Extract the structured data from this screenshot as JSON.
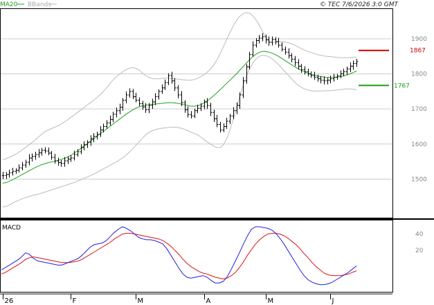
{
  "header": {
    "legend_ma": "MA20",
    "legend_bb": "BBands",
    "copyright": "© TEC 7/6/2026 3:0 GMT"
  },
  "colors": {
    "price": "#000000",
    "ma": "#1fa01f",
    "bbands": "#bbbbbb",
    "macd": "#2020dd",
    "signal": "#dd1111",
    "resistance": "#cc0000",
    "support": "#1aa01a",
    "grid": "#cccccc",
    "border": "#000000",
    "axis_text": "#888888"
  },
  "chart_data": [
    {
      "type": "ohlc",
      "title": "",
      "y_ticks": [
        1500,
        1600,
        1700,
        1800,
        1900
      ],
      "ylim": [
        1390,
        1985
      ],
      "months": [
        "26",
        "F",
        "M",
        "A",
        "M",
        "J"
      ],
      "month_start_index": [
        0,
        21,
        41,
        62,
        81,
        101
      ],
      "levels": [
        {
          "name": "resistance",
          "label": "1867",
          "value": 1867,
          "color": "#cc0000"
        },
        {
          "name": "support",
          "label": "1767",
          "value": 1767,
          "color": "#1aa01a"
        }
      ],
      "series": [
        {
          "name": "Price",
          "style": "bars",
          "values": [
            1510,
            1513,
            1518,
            1522,
            1525,
            1532,
            1540,
            1548,
            1560,
            1565,
            1570,
            1575,
            1582,
            1580,
            1574,
            1562,
            1552,
            1547,
            1545,
            1552,
            1557,
            1560,
            1570,
            1578,
            1590,
            1598,
            1605,
            1615,
            1622,
            1628,
            1640,
            1650,
            1660,
            1670,
            1685,
            1695,
            1705,
            1725,
            1740,
            1750,
            1735,
            1725,
            1715,
            1706,
            1698,
            1710,
            1720,
            1735,
            1750,
            1760,
            1775,
            1795,
            1780,
            1760,
            1740,
            1718,
            1698,
            1684,
            1680,
            1695,
            1702,
            1708,
            1720,
            1710,
            1690,
            1672,
            1656,
            1640,
            1650,
            1665,
            1680,
            1695,
            1710,
            1740,
            1780,
            1820,
            1855,
            1882,
            1895,
            1902,
            1906,
            1897,
            1890,
            1898,
            1892,
            1882,
            1870,
            1862,
            1852,
            1842,
            1832,
            1822,
            1812,
            1806,
            1800,
            1795,
            1790,
            1786,
            1782,
            1780,
            1782,
            1786,
            1790,
            1794,
            1800,
            1806,
            1814,
            1822,
            1830,
            1835
          ]
        },
        {
          "name": "MA20",
          "style": "line",
          "values": [
            1488,
            1490,
            1494,
            1498,
            1503,
            1508,
            1513,
            1518,
            1523,
            1528,
            1533,
            1537,
            1541,
            1544,
            1547,
            1549,
            1551,
            1553,
            1556,
            1559,
            1563,
            1568,
            1574,
            1580,
            1587,
            1594,
            1601,
            1608,
            1615,
            1622,
            1629,
            1636,
            1643,
            1650,
            1657,
            1664,
            1671,
            1678,
            1685,
            1691,
            1697,
            1702,
            1706,
            1709,
            1711,
            1712,
            1713,
            1714,
            1715,
            1716,
            1717,
            1718,
            1718,
            1717,
            1716,
            1714,
            1712,
            1710,
            1708,
            1708,
            1709,
            1712,
            1717,
            1723,
            1730,
            1738,
            1746,
            1755,
            1764,
            1773,
            1782,
            1791,
            1800,
            1810,
            1820,
            1830,
            1840,
            1849,
            1856,
            1861,
            1864,
            1864,
            1862,
            1859,
            1855,
            1850,
            1844,
            1838,
            1832,
            1826,
            1820,
            1815,
            1810,
            1806,
            1802,
            1799,
            1796,
            1794,
            1792,
            1791,
            1790,
            1790,
            1790,
            1791,
            1792,
            1794,
            1797,
            1800,
            1804,
            1808
          ]
        },
        {
          "name": "BBands upper",
          "style": "line",
          "values": [
            1555,
            1558,
            1562,
            1566,
            1571,
            1577,
            1583,
            1590,
            1597,
            1604,
            1612,
            1620,
            1628,
            1635,
            1640,
            1644,
            1648,
            1652,
            1657,
            1663,
            1669,
            1676,
            1683,
            1690,
            1697,
            1704,
            1711,
            1718,
            1725,
            1732,
            1740,
            1750,
            1760,
            1772,
            1783,
            1792,
            1799,
            1806,
            1812,
            1816,
            1818,
            1816,
            1811,
            1803,
            1795,
            1790,
            1787,
            1786,
            1786,
            1787,
            1788,
            1788,
            1787,
            1786,
            1785,
            1784,
            1783,
            1782,
            1782,
            1784,
            1787,
            1792,
            1798,
            1805,
            1814,
            1825,
            1840,
            1858,
            1878,
            1898,
            1918,
            1936,
            1952,
            1964,
            1971,
            1975,
            1973,
            1966,
            1955,
            1940,
            1922,
            1906,
            1895,
            1890,
            1891,
            1892,
            1892,
            1891,
            1889,
            1886,
            1882,
            1877,
            1872,
            1868,
            1864,
            1861,
            1858,
            1855,
            1853,
            1851,
            1850,
            1849,
            1848,
            1847,
            1846,
            1846,
            1846,
            1846,
            1847,
            1848
          ]
        },
        {
          "name": "BBands lower",
          "style": "line",
          "values": [
            1420,
            1422,
            1426,
            1431,
            1436,
            1440,
            1444,
            1447,
            1450,
            1453,
            1455,
            1457,
            1460,
            1463,
            1466,
            1469,
            1472,
            1475,
            1478,
            1481,
            1484,
            1487,
            1490,
            1494,
            1498,
            1502,
            1506,
            1510,
            1514,
            1519,
            1524,
            1529,
            1534,
            1539,
            1544,
            1549,
            1555,
            1561,
            1568,
            1577,
            1586,
            1596,
            1606,
            1616,
            1626,
            1633,
            1638,
            1641,
            1643,
            1645,
            1646,
            1647,
            1648,
            1648,
            1647,
            1645,
            1642,
            1638,
            1634,
            1630,
            1626,
            1620,
            1613,
            1606,
            1600,
            1594,
            1590,
            1590,
            1598,
            1615,
            1640,
            1670,
            1702,
            1735,
            1765,
            1792,
            1813,
            1830,
            1842,
            1850,
            1853,
            1852,
            1849,
            1843,
            1835,
            1826,
            1816,
            1806,
            1796,
            1786,
            1776,
            1768,
            1762,
            1757,
            1754,
            1752,
            1751,
            1751,
            1751,
            1752,
            1752,
            1752,
            1753,
            1754,
            1755,
            1756,
            1757,
            1757,
            1756,
            1755
          ]
        }
      ]
    },
    {
      "type": "line",
      "title": "MACD",
      "y_ticks": [
        20,
        40
      ],
      "ylim": [
        -30,
        55
      ],
      "series": [
        {
          "name": "MACD",
          "values": [
            -4,
            -1,
            2,
            5,
            8,
            12,
            17,
            15,
            10,
            7,
            6,
            5,
            4,
            3,
            2,
            2,
            4,
            6,
            8,
            10,
            14,
            19,
            24,
            27,
            28,
            29,
            32,
            37,
            42,
            46,
            49,
            47,
            44,
            40,
            36,
            34,
            33,
            33,
            32,
            30,
            28,
            22,
            14,
            6,
            -2,
            -9,
            -13,
            -14,
            -13,
            -12,
            -11,
            -13,
            -17,
            -20,
            -20,
            -18,
            -12,
            -3,
            7,
            17,
            28,
            38,
            46,
            49,
            49,
            48,
            47,
            45,
            41,
            35,
            28,
            20,
            12,
            4,
            -4,
            -11,
            -16,
            -19,
            -21,
            -22,
            -22,
            -21,
            -19,
            -16,
            -13,
            -10,
            -7,
            -3,
            1
          ]
        },
        {
          "name": "Signal",
          "values": [
            -9,
            -7,
            -4,
            -1,
            2,
            5,
            9,
            11,
            12,
            11,
            10,
            9,
            8,
            7,
            6,
            5,
            5,
            5,
            6,
            7,
            9,
            12,
            15,
            18,
            21,
            24,
            27,
            30,
            34,
            37,
            40,
            41,
            41,
            40,
            39,
            38,
            37,
            36,
            35,
            34,
            32,
            29,
            25,
            20,
            15,
            9,
            4,
            0,
            -3,
            -6,
            -8,
            -9,
            -11,
            -13,
            -14,
            -15,
            -14,
            -11,
            -7,
            -1,
            6,
            14,
            21,
            28,
            33,
            37,
            40,
            41,
            41,
            40,
            38,
            35,
            31,
            27,
            22,
            16,
            11,
            5,
            0,
            -4,
            -8,
            -10,
            -11,
            -11,
            -11,
            -10,
            -9,
            -7,
            -5
          ]
        }
      ]
    }
  ]
}
